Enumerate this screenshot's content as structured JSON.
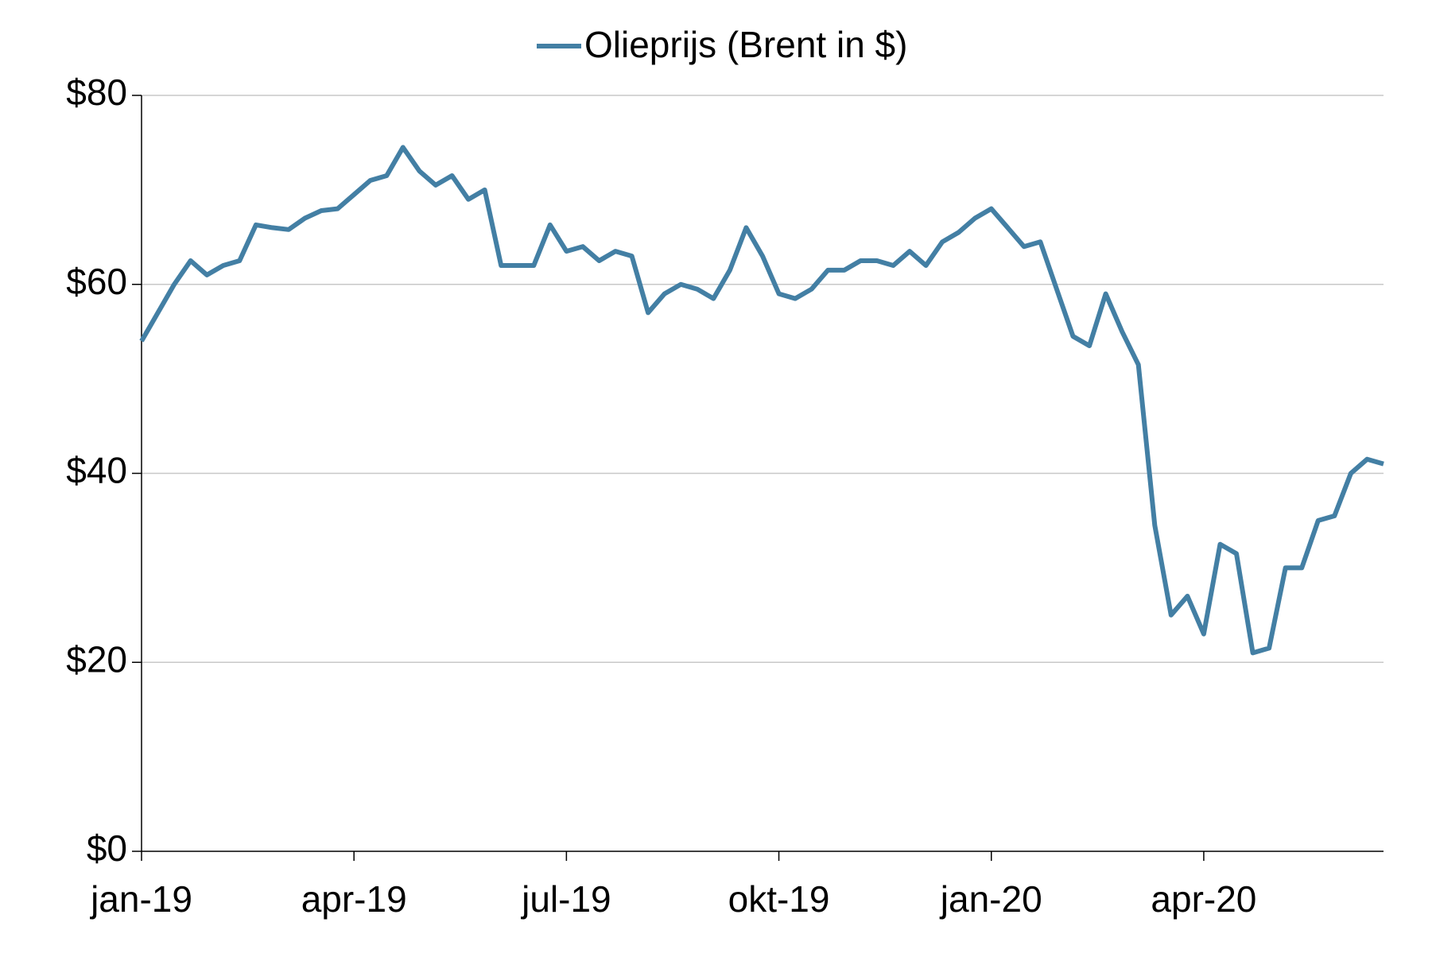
{
  "chart_data": {
    "type": "line",
    "categories": [
      "jan-19",
      null,
      null,
      null,
      null,
      null,
      null,
      null,
      null,
      null,
      null,
      null,
      null,
      "apr-19",
      null,
      null,
      null,
      null,
      null,
      null,
      null,
      null,
      null,
      null,
      null,
      null,
      "jul-19",
      null,
      null,
      null,
      null,
      null,
      null,
      null,
      null,
      null,
      null,
      null,
      null,
      "okt-19",
      null,
      null,
      null,
      null,
      null,
      null,
      null,
      null,
      null,
      null,
      null,
      null,
      "jan-20",
      null,
      null,
      null,
      null,
      null,
      null,
      null,
      null,
      null,
      null,
      null,
      null,
      "apr-20",
      null,
      null,
      null,
      null,
      null,
      null,
      null,
      null,
      null,
      null,
      null
    ],
    "series": [
      {
        "name": "Olieprijs (Brent in $)",
        "color": "#437fa4",
        "values": [
          54,
          57,
          60,
          62.5,
          61,
          62,
          62.5,
          66.3,
          66,
          65.8,
          67,
          67.8,
          68,
          69.5,
          71,
          71.5,
          74.5,
          72,
          70.5,
          71.5,
          69,
          70,
          62,
          62,
          62,
          66.3,
          63.5,
          64,
          62.5,
          63.5,
          63,
          57,
          59,
          60,
          59.5,
          58.5,
          61.5,
          66,
          63,
          59,
          58.5,
          59.5,
          61.5,
          61.5,
          62.5,
          62.5,
          62,
          63.5,
          62,
          64.5,
          65.5,
          67,
          68,
          66,
          64,
          64.5,
          59.5,
          54.5,
          53.5,
          59,
          55,
          51.5,
          34.5,
          25,
          27,
          23,
          32.5,
          31.5,
          21,
          21.5,
          30,
          30,
          35,
          35.5,
          40,
          41.5,
          41
        ]
      }
    ],
    "ylim": [
      0,
      80
    ],
    "yticks": [
      {
        "value": 0,
        "label": "$0"
      },
      {
        "value": 20,
        "label": "$20"
      },
      {
        "value": 40,
        "label": "$40"
      },
      {
        "value": 60,
        "label": "$60"
      },
      {
        "value": 80,
        "label": "$80"
      }
    ],
    "grid": true,
    "legend": "top"
  }
}
